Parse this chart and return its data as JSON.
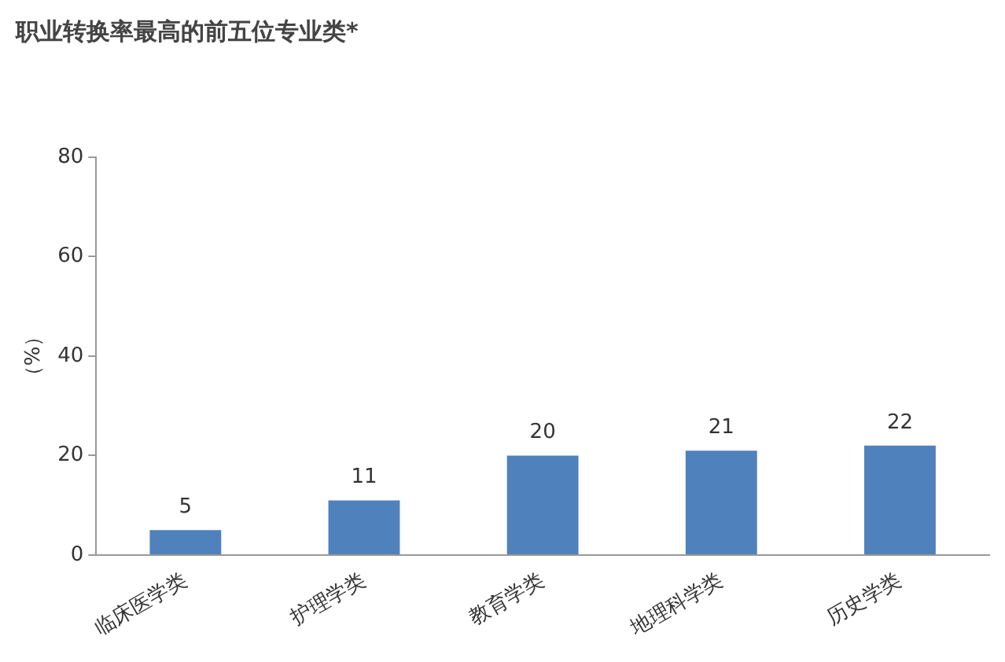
{
  "chart_data": {
    "type": "bar",
    "title": "职业转换率最高的前五位专业类*",
    "ylabel": "（%）",
    "categories": [
      "临床医学类",
      "护理学类",
      "教育学类",
      "地理科学类",
      "历史学类"
    ],
    "values": [
      5,
      11,
      20,
      21,
      22
    ],
    "color": "#4f81bd",
    "ylim": [
      0,
      80
    ],
    "yticks": [
      0,
      20,
      40,
      60,
      80
    ],
    "grid": false,
    "legend": false,
    "data_labels": true
  }
}
